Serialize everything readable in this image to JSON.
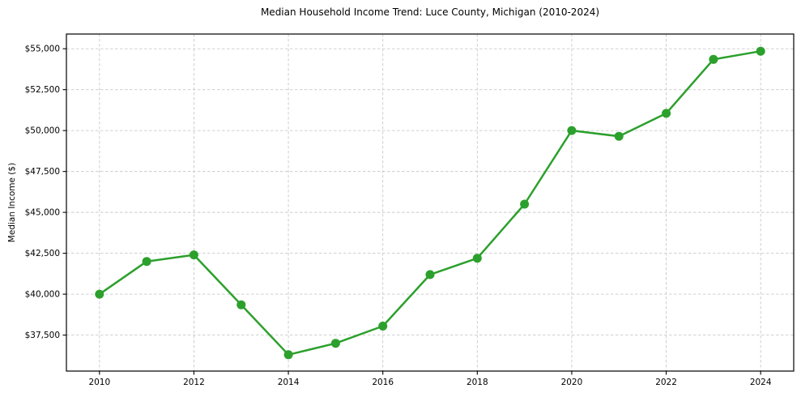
{
  "chart_data": {
    "type": "line",
    "title": "Median Household Income Trend: Luce County, Michigan (2010-2024)",
    "xlabel": "",
    "ylabel": "Median Income ($)",
    "x": [
      2010,
      2011,
      2012,
      2013,
      2014,
      2015,
      2016,
      2017,
      2018,
      2019,
      2020,
      2021,
      2022,
      2023,
      2024
    ],
    "y": [
      40000,
      42000,
      42400,
      39350,
      36300,
      37000,
      38050,
      41200,
      42200,
      45500,
      50000,
      49650,
      51050,
      54350,
      54850
    ],
    "xlim": [
      2009.3,
      2024.7
    ],
    "ylim": [
      35300,
      55900
    ],
    "x_ticks": [
      2010,
      2012,
      2014,
      2016,
      2018,
      2020,
      2022,
      2024
    ],
    "x_tick_labels": [
      "2010",
      "2012",
      "2014",
      "2016",
      "2018",
      "2020",
      "2022",
      "2024"
    ],
    "y_ticks": [
      37500,
      40000,
      42500,
      45000,
      47500,
      50000,
      52500,
      55000
    ],
    "y_tick_labels": [
      "$37,500",
      "$40,000",
      "$42,500",
      "$45,000",
      "$47,500",
      "$50,000",
      "$52,500",
      "$55,000"
    ],
    "grid": true,
    "legend_position": "none",
    "colors": {
      "line": "#2ca02c",
      "marker": "#2ca02c",
      "grid": "#c9c9c9",
      "axis": "#000000",
      "text": "#000000",
      "background": "#ffffff"
    }
  }
}
